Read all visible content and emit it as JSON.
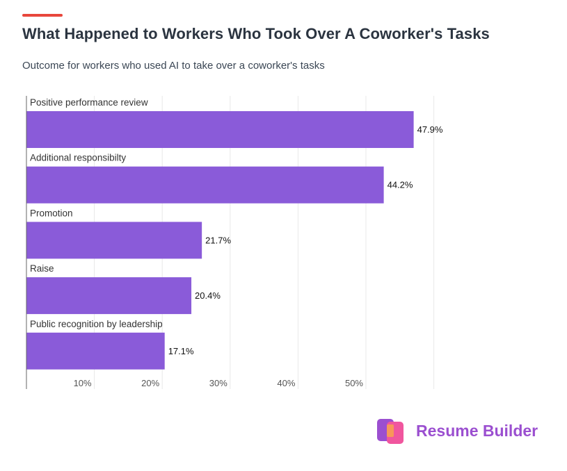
{
  "header": {
    "title": "What Happened to Workers Who Took Over A Coworker's Tasks",
    "subtitle": "Outcome for workers who used AI to take over a coworker's tasks"
  },
  "brand": {
    "name": "Resume Builder"
  },
  "chart_data": {
    "type": "bar",
    "orientation": "horizontal",
    "categories": [
      "Positive performance review",
      "Additional responsibilty",
      "Promotion",
      "Raise",
      "Public recognition by leadership"
    ],
    "values": [
      47.9,
      44.2,
      21.7,
      20.4,
      17.1
    ],
    "value_labels": [
      "47.9%",
      "44.2%",
      "21.7%",
      "20.4%",
      "17.1%"
    ],
    "x_ticks": [
      "10%",
      "20%",
      "30%",
      "40%",
      "50%"
    ],
    "grid": true,
    "bar_color": "#8a5bd9",
    "accent_color": "#e8473c"
  }
}
